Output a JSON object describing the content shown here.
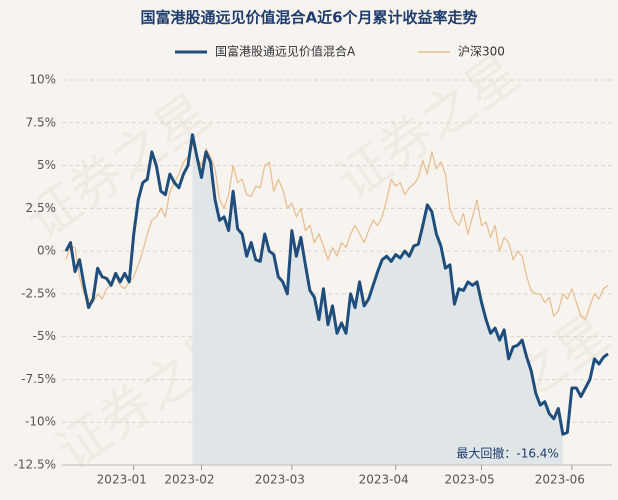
{
  "chart_data": {
    "type": "line",
    "title": "国富港股通远见价值混合A近6个月累计收益率走势",
    "watermark": "证券之星",
    "annotation": "最大回撤：-16.4%",
    "categories": [
      null,
      null,
      null,
      null,
      null,
      null,
      null,
      null,
      null,
      null,
      null,
      null,
      null,
      null,
      null,
      "2023-01",
      null,
      null,
      null,
      null,
      null,
      null,
      null,
      null,
      null,
      null,
      null,
      null,
      null,
      null,
      "2023-02",
      null,
      null,
      null,
      null,
      null,
      null,
      null,
      null,
      null,
      null,
      null,
      null,
      null,
      null,
      null,
      null,
      null,
      null,
      null,
      "2023-03",
      null,
      null,
      null,
      null,
      null,
      null,
      null,
      null,
      null,
      null,
      null,
      null,
      null,
      null,
      null,
      null,
      null,
      null,
      null,
      null,
      null,
      null,
      "2023-04",
      null,
      null,
      null,
      null,
      null,
      null,
      null,
      null,
      null,
      null,
      null,
      null,
      null,
      null,
      null,
      null,
      null,
      null,
      "2023-05",
      null,
      null,
      null,
      null,
      null,
      null,
      null,
      null,
      null,
      null,
      null,
      null,
      null,
      null,
      null,
      null,
      null,
      null,
      null,
      "2023-06",
      null,
      null,
      null,
      null,
      null,
      null,
      null,
      null
    ],
    "series": [
      {
        "name": "国富港股通远见价值混合A",
        "color": "#1f4e7d",
        "values": [
          0,
          0.5,
          -1.2,
          -0.5,
          -2,
          -3.3,
          -2.8,
          -1,
          -1.5,
          -1.6,
          -2,
          -1.3,
          -1.8,
          -1.3,
          -1.8,
          1,
          3,
          4,
          4.2,
          5.8,
          5,
          3.5,
          3.3,
          4.5,
          4,
          3.7,
          4.5,
          5,
          6.8,
          5.5,
          4.3,
          5.8,
          5.2,
          3,
          1.8,
          2,
          1.2,
          3.5,
          1.3,
          1,
          -0.3,
          0.5,
          -0.5,
          -0.6,
          1,
          0,
          -0.2,
          -1.5,
          -1.8,
          -2.5,
          1.2,
          -0.3,
          0.8,
          -0.8,
          -2.3,
          -2.7,
          -4,
          -2.2,
          -4.3,
          -3.2,
          -4.8,
          -4.2,
          -4.8,
          -2.5,
          -3.3,
          -1.8,
          -3.2,
          -2.8,
          -2,
          -1.2,
          -0.5,
          -0.3,
          -0.6,
          -0.2,
          -0.4,
          0,
          -0.3,
          0.3,
          0.4,
          1.5,
          2.7,
          2.3,
          1,
          0.3,
          -1,
          -0.8,
          -3.1,
          -2.2,
          -2.3,
          -1.8,
          -2,
          -1.8,
          -3,
          -4,
          -4.8,
          -4.5,
          -5.2,
          -4.6,
          -6.3,
          -5.6,
          -5.5,
          -5.2,
          -6.2,
          -7,
          -8.3,
          -9,
          -8.8,
          -9.5,
          -9.8,
          -9.2,
          -10.7,
          -10.6,
          -8,
          -8,
          -8.5,
          -8,
          -7.5,
          -6.3,
          -6.6,
          -6.2,
          -6
        ]
      },
      {
        "name": "沪深300",
        "color": "#e9bb8c",
        "values": [
          -0.5,
          0.3,
          0.2,
          -1.5,
          -2.5,
          -2.8,
          -3,
          -2.5,
          -2.8,
          -2.2,
          -2,
          -1.5,
          -2,
          -2.2,
          -1.8,
          -1.5,
          -0.8,
          0,
          1,
          1.8,
          2,
          2.5,
          2,
          3.5,
          4,
          4.5,
          5.2,
          5.5,
          6.3,
          5.5,
          5,
          6,
          5.5,
          4.8,
          3,
          2.5,
          3.3,
          5,
          4,
          4.2,
          3.3,
          3.2,
          3.8,
          3.7,
          5,
          5.2,
          3.5,
          4.2,
          3.6,
          2.5,
          2.8,
          2,
          2.5,
          1.2,
          1.5,
          0.5,
          1,
          0.3,
          -0.5,
          0.2,
          -0.3,
          0.5,
          0.2,
          1,
          1.5,
          1,
          0.5,
          1.2,
          1.8,
          1.5,
          2,
          3,
          4.2,
          3.8,
          4,
          3.3,
          3.7,
          3.9,
          4.3,
          5.3,
          4.5,
          5.8,
          4.8,
          5.2,
          4.5,
          2.5,
          1.8,
          1.5,
          2.2,
          1,
          2,
          3,
          1.5,
          1.7,
          0.8,
          1.5,
          0,
          0.8,
          0.5,
          -0.5,
          0,
          -0.3,
          -1.5,
          -2.3,
          -2.5,
          -2.5,
          -3,
          -2.7,
          -3.8,
          -3.5,
          -2.5,
          -2.8,
          -2.2,
          -3,
          -3.8,
          -4,
          -3.2,
          -2.5,
          -2.8,
          -2.2,
          -2
        ]
      }
    ],
    "ylim": [
      -12.5,
      10
    ],
    "yticks": [
      {
        "value": -12.5,
        "label": "-12.5%"
      },
      {
        "value": -10,
        "label": "-10%"
      },
      {
        "value": -7.5,
        "label": "-7.5%"
      },
      {
        "value": -5,
        "label": "-5%"
      },
      {
        "value": -2.5,
        "label": "-2.5%"
      },
      {
        "value": 0,
        "label": "0%"
      },
      {
        "value": 2.5,
        "label": "2.5%"
      },
      {
        "value": 5,
        "label": "5%"
      },
      {
        "value": 7.5,
        "label": "7.5%"
      },
      {
        "value": 10,
        "label": "10%"
      }
    ],
    "grid": true
  }
}
